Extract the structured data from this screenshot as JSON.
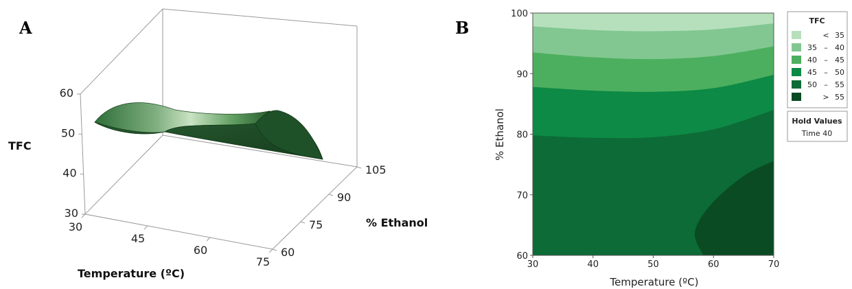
{
  "panel_a_label": "A",
  "panel_b_label": "B",
  "colors": {
    "c1": "#b6e0bc",
    "c2": "#82c792",
    "c3": "#4caf5f",
    "c4": "#0d8a45",
    "c5": "#0c6b36",
    "c6": "#0a4b23"
  },
  "chart_data": [
    {
      "type": "surface",
      "zlabel": "TFC",
      "xlabel": "Temperature (ºC)",
      "ylabel": "% Ethanol",
      "x_ticks": [
        "30",
        "45",
        "60",
        "75"
      ],
      "y_ticks": [
        "60",
        "75",
        "90",
        "105"
      ],
      "z_ticks": [
        "30",
        "40",
        "50",
        "60"
      ],
      "xlim": [
        30,
        75
      ],
      "ylim": [
        60,
        105
      ],
      "zlim": [
        30,
        60
      ],
      "surface_edge_at_ethanol_105": [
        {
          "temperature": 30,
          "tfc": 49
        },
        {
          "temperature": 45,
          "tfc": 48.5
        },
        {
          "temperature": 60,
          "tfc": 47.5
        },
        {
          "temperature": 75,
          "tfc": 46
        }
      ],
      "surface_edge_at_temperature_75": [
        {
          "ethanol": 60,
          "tfc": 49
        },
        {
          "ethanol": 75,
          "tfc": 55
        },
        {
          "ethanol": 90,
          "tfc": 51
        },
        {
          "ethanol": 105,
          "tfc": 46
        }
      ]
    },
    {
      "type": "contour",
      "xlabel": "Temperature (ºC)",
      "ylabel": "% Ethanol",
      "x_ticks": [
        "30",
        "40",
        "50",
        "60",
        "70"
      ],
      "y_ticks": [
        "60",
        "70",
        "80",
        "90",
        "100"
      ],
      "xlim": [
        30,
        70
      ],
      "ylim": [
        60,
        100
      ],
      "legend": {
        "title": "TFC",
        "items": [
          {
            "op": "<",
            "lo": "",
            "hi": "35",
            "color": "#b6e0bc"
          },
          {
            "op": "–",
            "lo": "35",
            "hi": "40",
            "color": "#82c792"
          },
          {
            "op": "–",
            "lo": "40",
            "hi": "45",
            "color": "#4caf5f"
          },
          {
            "op": "–",
            "lo": "45",
            "hi": "50",
            "color": "#0d8a45"
          },
          {
            "op": "–",
            "lo": "50",
            "hi": "55",
            "color": "#0c6b36"
          },
          {
            "op": ">",
            "lo": "",
            "hi": "55",
            "color": "#0a4b23"
          }
        ]
      },
      "hold_values": {
        "title": "Hold Values",
        "line": "Time 40"
      },
      "contours": [
        {
          "level": 35,
          "points": [
            [
              30,
              97.8
            ],
            [
              40,
              97.2
            ],
            [
              50,
              97.0
            ],
            [
              60,
              97.3
            ],
            [
              70,
              98.3
            ]
          ]
        },
        {
          "level": 40,
          "points": [
            [
              30,
              93.5
            ],
            [
              40,
              92.7
            ],
            [
              50,
              92.4
            ],
            [
              60,
              92.9
            ],
            [
              70,
              94.5
            ]
          ]
        },
        {
          "level": 45,
          "points": [
            [
              30,
              87.8
            ],
            [
              40,
              87.2
            ],
            [
              50,
              87.0
            ],
            [
              60,
              87.6
            ],
            [
              70,
              89.8
            ]
          ]
        },
        {
          "level": 50,
          "points": [
            [
              30,
              79.8
            ],
            [
              40,
              79.4
            ],
            [
              50,
              79.5
            ],
            [
              60,
              80.8
            ],
            [
              70,
              84.0
            ]
          ]
        },
        {
          "level": 55,
          "points": [
            [
              70,
              75.6
            ],
            [
              65,
              73.1
            ],
            [
              59.5,
              68.3
            ],
            [
              56.9,
              63.8
            ],
            [
              58.3,
              60.0
            ]
          ]
        }
      ]
    }
  ]
}
